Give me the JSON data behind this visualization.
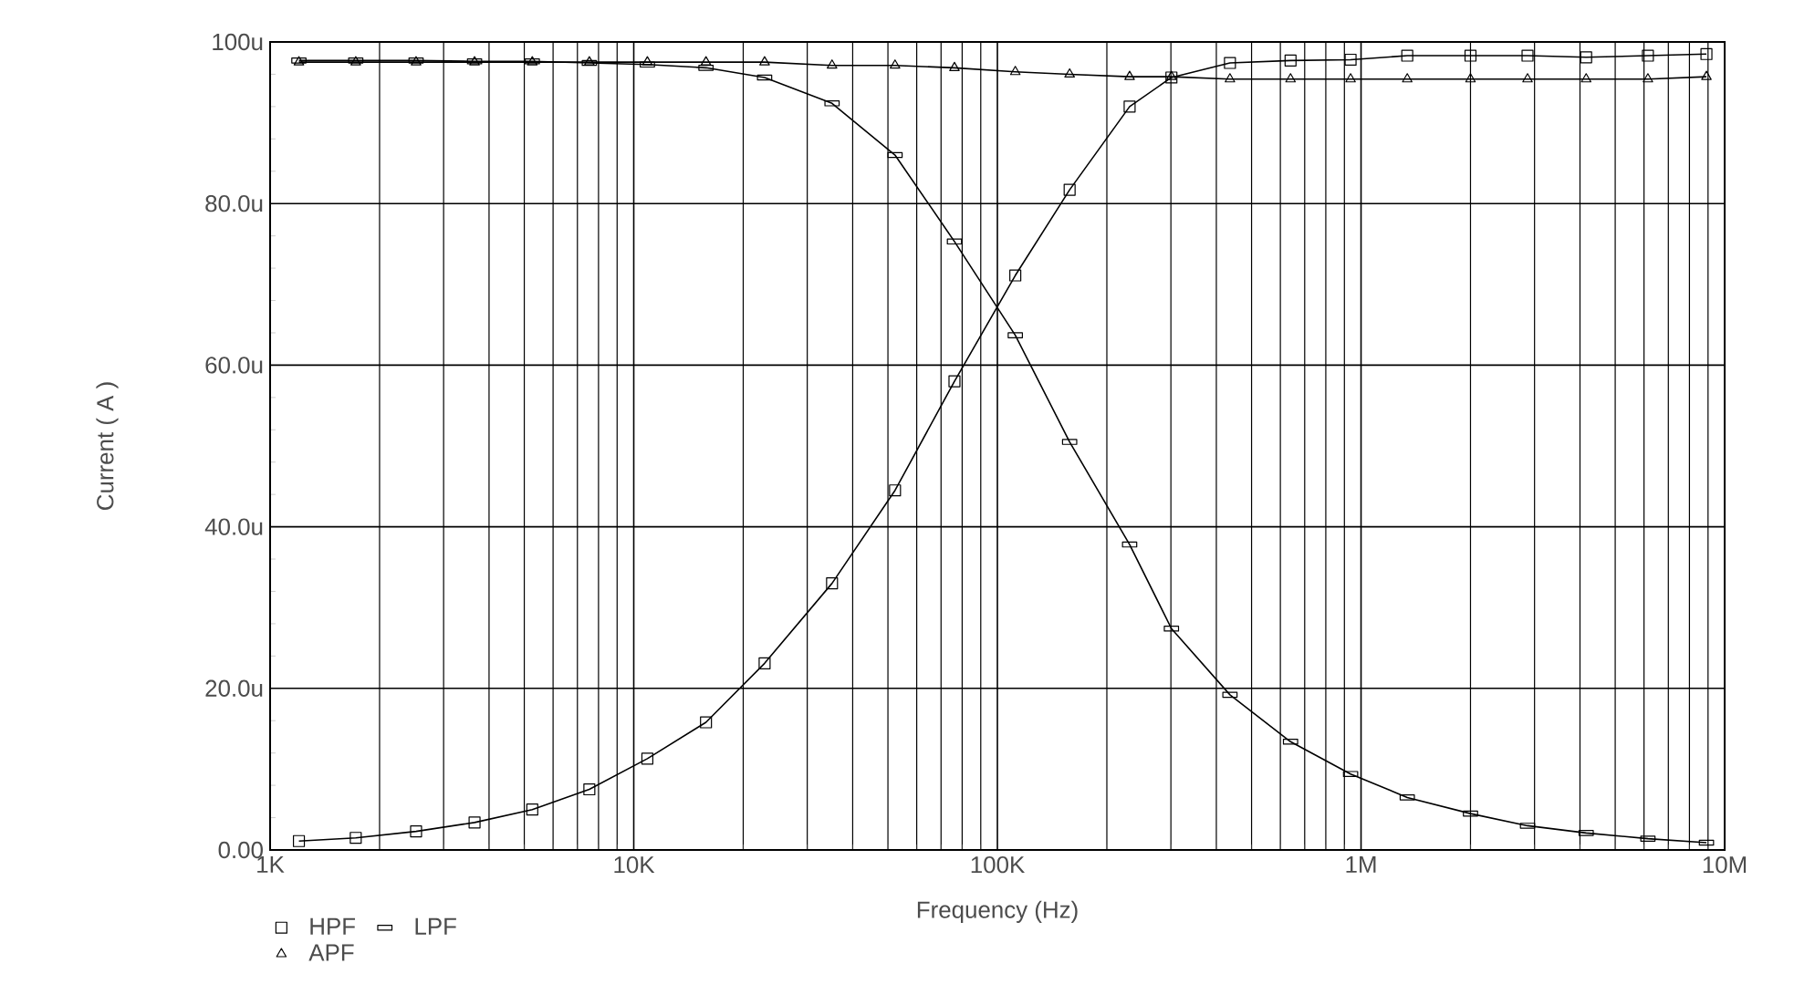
{
  "chart_data": {
    "type": "line",
    "xlabel": "Frequency (Hz)",
    "ylabel": "Current ( A )",
    "log": "x",
    "grid": true,
    "legend": "bottom left",
    "xlim": [
      1000,
      10000000
    ],
    "ylim": [
      0,
      100
    ],
    "xticks": [
      {
        "value": 1000,
        "label": "1K"
      },
      {
        "value": 10000,
        "label": "10K"
      },
      {
        "value": 100000,
        "label": "100K"
      },
      {
        "value": 1000000,
        "label": "1M"
      },
      {
        "value": 10000000,
        "label": "10M"
      }
    ],
    "yticks": [
      {
        "value": 0,
        "label": "0.00"
      },
      {
        "value": 20,
        "label": "20.0u"
      },
      {
        "value": 40,
        "label": "40.0u"
      },
      {
        "value": 60,
        "label": "60.0u"
      },
      {
        "value": 80,
        "label": "80.0u"
      },
      {
        "value": 100,
        "label": "100u"
      }
    ],
    "x": [
      1200,
      1720,
      2520,
      3650,
      5260,
      7550,
      10900,
      15800,
      22900,
      35100,
      52300,
      76200,
      112000,
      158000,
      231000,
      301000,
      436000,
      640000,
      936000,
      1340000,
      2000000,
      2870000,
      4160000,
      6150000,
      8910000
    ],
    "series": [
      {
        "name": "HPF",
        "color": "#000000",
        "marker": "square",
        "values": [
          1.1,
          1.5,
          2.3,
          3.4,
          5.0,
          7.5,
          11.3,
          15.8,
          23.1,
          33.0,
          44.5,
          58.0,
          71.1,
          81.7,
          92.0,
          95.6,
          97.4,
          97.7,
          97.8,
          98.3,
          98.3,
          98.3,
          98.1,
          98.3,
          98.5
        ]
      },
      {
        "name": "LPF",
        "color": "#000000",
        "marker": "square",
        "values": [
          97.7,
          97.7,
          97.7,
          97.6,
          97.6,
          97.4,
          97.2,
          96.8,
          95.6,
          92.4,
          86.0,
          75.3,
          63.7,
          50.5,
          37.8,
          27.4,
          19.2,
          13.4,
          9.4,
          6.5,
          4.5,
          3.0,
          2.1,
          1.4,
          0.9
        ]
      },
      {
        "name": "APF",
        "color": "#000000",
        "marker": "triangle",
        "values": [
          97.5,
          97.5,
          97.5,
          97.5,
          97.5,
          97.5,
          97.5,
          97.5,
          97.5,
          97.1,
          97.1,
          96.8,
          96.3,
          96.0,
          95.7,
          95.7,
          95.4,
          95.4,
          95.4,
          95.4,
          95.4,
          95.4,
          95.4,
          95.4,
          95.7
        ]
      }
    ]
  }
}
